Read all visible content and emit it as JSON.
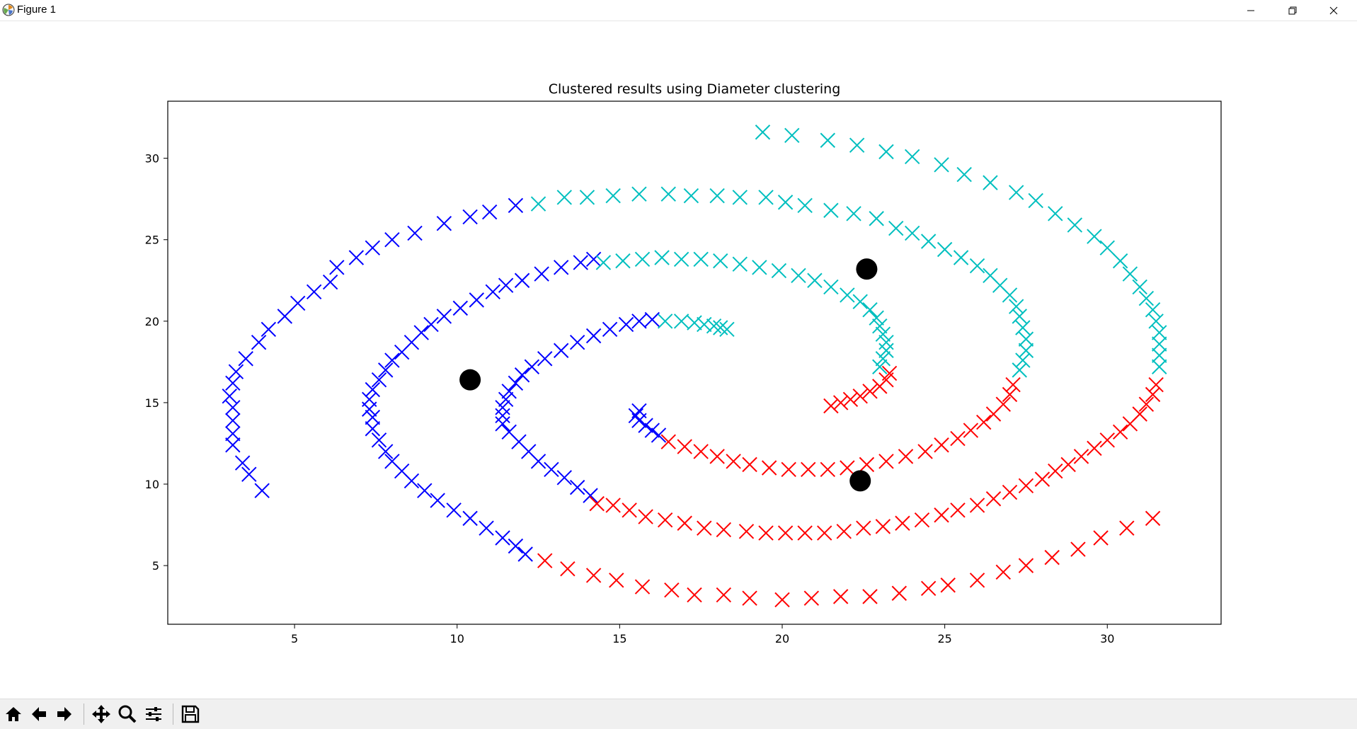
{
  "window": {
    "title": "Figure 1",
    "controls": [
      "minimize-icon",
      "maximize-icon",
      "close-icon"
    ]
  },
  "toolbar": {
    "buttons": [
      "home-icon",
      "back-icon",
      "forward-icon",
      "pan-icon",
      "zoom-icon",
      "configure-subplots-icon",
      "save-icon"
    ]
  },
  "chart_data": {
    "type": "scatter",
    "title": "Clustered results using Diameter clustering",
    "xlabel": "",
    "ylabel": "",
    "xlim": [
      1.1,
      33.5
    ],
    "ylim": [
      1.4,
      33.5
    ],
    "xticks": [
      5,
      10,
      15,
      20,
      25,
      30
    ],
    "yticks": [
      5,
      10,
      15,
      20,
      25,
      30
    ],
    "grid": false,
    "legend": "none",
    "marker": "x",
    "series": [
      {
        "color": "#0000ff",
        "points": [
          [
            4.0,
            9.6
          ],
          [
            3.6,
            10.6
          ],
          [
            3.4,
            11.3
          ],
          [
            3.1,
            12.4
          ],
          [
            3.1,
            13.1
          ],
          [
            3.1,
            13.9
          ],
          [
            3.1,
            14.7
          ],
          [
            3.0,
            15.4
          ],
          [
            3.1,
            16.2
          ],
          [
            3.2,
            16.9
          ],
          [
            3.5,
            17.7
          ],
          [
            3.9,
            18.7
          ],
          [
            4.2,
            19.5
          ],
          [
            4.7,
            20.3
          ],
          [
            5.1,
            21.1
          ],
          [
            5.6,
            21.8
          ],
          [
            6.1,
            22.4
          ],
          [
            6.3,
            23.3
          ],
          [
            6.9,
            23.9
          ],
          [
            7.4,
            24.5
          ],
          [
            8.0,
            25.0
          ],
          [
            8.7,
            25.4
          ],
          [
            9.6,
            26.0
          ],
          [
            10.4,
            26.4
          ],
          [
            11.0,
            26.7
          ],
          [
            11.8,
            27.1
          ],
          [
            7.4,
            14.1
          ],
          [
            7.3,
            14.6
          ],
          [
            7.3,
            15.2
          ],
          [
            7.4,
            15.8
          ],
          [
            7.6,
            16.4
          ],
          [
            7.8,
            17.0
          ],
          [
            8.0,
            17.6
          ],
          [
            8.3,
            18.1
          ],
          [
            8.6,
            18.7
          ],
          [
            8.9,
            19.3
          ],
          [
            9.2,
            19.8
          ],
          [
            9.6,
            20.3
          ],
          [
            10.1,
            20.8
          ],
          [
            10.6,
            21.3
          ],
          [
            11.1,
            21.8
          ],
          [
            11.5,
            22.2
          ],
          [
            12.0,
            22.5
          ],
          [
            12.6,
            22.9
          ],
          [
            13.2,
            23.3
          ],
          [
            13.8,
            23.6
          ],
          [
            14.2,
            23.8
          ],
          [
            7.4,
            13.4
          ],
          [
            7.6,
            12.7
          ],
          [
            7.8,
            12.0
          ],
          [
            8.0,
            11.4
          ],
          [
            8.3,
            10.8
          ],
          [
            8.6,
            10.2
          ],
          [
            9.0,
            9.6
          ],
          [
            9.4,
            9.0
          ],
          [
            9.9,
            8.4
          ],
          [
            10.4,
            7.9
          ],
          [
            10.9,
            7.3
          ],
          [
            11.4,
            6.7
          ],
          [
            11.8,
            6.2
          ],
          [
            12.1,
            5.7
          ],
          [
            11.6,
            13.2
          ],
          [
            11.4,
            13.7
          ],
          [
            11.4,
            14.2
          ],
          [
            11.4,
            14.7
          ],
          [
            11.5,
            15.2
          ],
          [
            11.6,
            15.7
          ],
          [
            11.8,
            16.2
          ],
          [
            12.0,
            16.7
          ],
          [
            12.3,
            17.2
          ],
          [
            12.7,
            17.7
          ],
          [
            13.2,
            18.2
          ],
          [
            13.7,
            18.7
          ],
          [
            14.2,
            19.1
          ],
          [
            14.7,
            19.5
          ],
          [
            15.2,
            19.8
          ],
          [
            15.6,
            20.0
          ],
          [
            16.0,
            20.1
          ],
          [
            11.9,
            12.6
          ],
          [
            12.2,
            12.0
          ],
          [
            12.5,
            11.4
          ],
          [
            12.9,
            10.9
          ],
          [
            13.3,
            10.4
          ],
          [
            13.7,
            9.8
          ],
          [
            14.1,
            9.3
          ],
          [
            15.6,
            14.5
          ],
          [
            15.5,
            14.2
          ],
          [
            15.6,
            13.9
          ],
          [
            15.8,
            13.6
          ],
          [
            16.0,
            13.3
          ],
          [
            16.2,
            13.0
          ]
        ]
      },
      {
        "color": "#00bfbf",
        "points": [
          [
            19.4,
            31.6
          ],
          [
            20.3,
            31.4
          ],
          [
            21.4,
            31.1
          ],
          [
            22.3,
            30.8
          ],
          [
            23.2,
            30.4
          ],
          [
            24.0,
            30.1
          ],
          [
            24.9,
            29.6
          ],
          [
            25.6,
            29.0
          ],
          [
            26.4,
            28.5
          ],
          [
            27.2,
            27.9
          ],
          [
            27.8,
            27.4
          ],
          [
            28.4,
            26.6
          ],
          [
            29.0,
            25.9
          ],
          [
            29.6,
            25.2
          ],
          [
            30.0,
            24.5
          ],
          [
            30.4,
            23.7
          ],
          [
            30.7,
            22.9
          ],
          [
            31.0,
            22.1
          ],
          [
            31.2,
            21.4
          ],
          [
            31.4,
            20.7
          ],
          [
            31.5,
            20.0
          ],
          [
            31.6,
            19.3
          ],
          [
            31.6,
            18.6
          ],
          [
            31.6,
            17.9
          ],
          [
            31.6,
            17.2
          ],
          [
            12.5,
            27.2
          ],
          [
            13.3,
            27.6
          ],
          [
            14.0,
            27.6
          ],
          [
            14.8,
            27.7
          ],
          [
            15.6,
            27.8
          ],
          [
            16.5,
            27.8
          ],
          [
            17.2,
            27.7
          ],
          [
            18.0,
            27.7
          ],
          [
            18.7,
            27.6
          ],
          [
            19.5,
            27.6
          ],
          [
            20.1,
            27.3
          ],
          [
            20.7,
            27.1
          ],
          [
            21.5,
            26.8
          ],
          [
            22.2,
            26.6
          ],
          [
            22.9,
            26.3
          ],
          [
            23.5,
            25.7
          ],
          [
            24.0,
            25.4
          ],
          [
            24.5,
            24.9
          ],
          [
            25.0,
            24.4
          ],
          [
            25.5,
            23.9
          ],
          [
            26.0,
            23.4
          ],
          [
            26.4,
            22.8
          ],
          [
            26.7,
            22.2
          ],
          [
            27.0,
            21.6
          ],
          [
            27.2,
            20.9
          ],
          [
            27.3,
            20.3
          ],
          [
            27.4,
            19.6
          ],
          [
            27.5,
            18.9
          ],
          [
            27.5,
            18.2
          ],
          [
            27.4,
            17.6
          ],
          [
            27.3,
            17.0
          ],
          [
            14.5,
            23.6
          ],
          [
            15.1,
            23.7
          ],
          [
            15.7,
            23.8
          ],
          [
            16.3,
            23.9
          ],
          [
            16.9,
            23.8
          ],
          [
            17.5,
            23.8
          ],
          [
            18.1,
            23.7
          ],
          [
            18.7,
            23.5
          ],
          [
            19.3,
            23.3
          ],
          [
            19.9,
            23.1
          ],
          [
            20.5,
            22.8
          ],
          [
            21.0,
            22.5
          ],
          [
            21.5,
            22.1
          ],
          [
            22.0,
            21.6
          ],
          [
            22.4,
            21.2
          ],
          [
            22.7,
            20.7
          ],
          [
            22.9,
            20.2
          ],
          [
            23.0,
            19.7
          ],
          [
            23.1,
            19.2
          ],
          [
            23.2,
            18.7
          ],
          [
            23.2,
            18.2
          ],
          [
            23.1,
            17.7
          ],
          [
            23.0,
            17.2
          ],
          [
            16.4,
            20.0
          ],
          [
            16.9,
            20.0
          ],
          [
            17.3,
            19.9
          ],
          [
            17.6,
            19.8
          ],
          [
            17.9,
            19.7
          ],
          [
            18.1,
            19.6
          ],
          [
            18.3,
            19.5
          ]
        ]
      },
      {
        "color": "#ff0000",
        "points": [
          [
            12.7,
            5.3
          ],
          [
            13.4,
            4.8
          ],
          [
            14.2,
            4.4
          ],
          [
            14.9,
            4.1
          ],
          [
            15.7,
            3.7
          ],
          [
            16.6,
            3.5
          ],
          [
            17.3,
            3.2
          ],
          [
            18.2,
            3.2
          ],
          [
            19.0,
            3.0
          ],
          [
            20.0,
            2.9
          ],
          [
            20.9,
            3.0
          ],
          [
            21.8,
            3.1
          ],
          [
            22.7,
            3.1
          ],
          [
            23.6,
            3.3
          ],
          [
            24.5,
            3.6
          ],
          [
            25.1,
            3.8
          ],
          [
            26.0,
            4.1
          ],
          [
            26.8,
            4.6
          ],
          [
            27.5,
            5.0
          ],
          [
            28.3,
            5.5
          ],
          [
            29.1,
            6.0
          ],
          [
            29.8,
            6.7
          ],
          [
            30.6,
            7.3
          ],
          [
            31.4,
            7.9
          ],
          [
            14.3,
            8.8
          ],
          [
            14.8,
            8.7
          ],
          [
            15.3,
            8.4
          ],
          [
            15.8,
            8.0
          ],
          [
            16.4,
            7.8
          ],
          [
            17.0,
            7.6
          ],
          [
            17.6,
            7.3
          ],
          [
            18.2,
            7.2
          ],
          [
            18.9,
            7.1
          ],
          [
            19.5,
            7.0
          ],
          [
            20.1,
            7.0
          ],
          [
            20.7,
            7.0
          ],
          [
            21.3,
            7.0
          ],
          [
            21.9,
            7.1
          ],
          [
            22.5,
            7.3
          ],
          [
            23.1,
            7.4
          ],
          [
            23.7,
            7.6
          ],
          [
            24.3,
            7.8
          ],
          [
            24.9,
            8.1
          ],
          [
            25.4,
            8.4
          ],
          [
            26.0,
            8.7
          ],
          [
            26.5,
            9.1
          ],
          [
            27.0,
            9.5
          ],
          [
            27.5,
            9.9
          ],
          [
            28.0,
            10.3
          ],
          [
            28.4,
            10.8
          ],
          [
            28.8,
            11.2
          ],
          [
            29.2,
            11.7
          ],
          [
            29.6,
            12.2
          ],
          [
            30.0,
            12.7
          ],
          [
            30.4,
            13.2
          ],
          [
            30.7,
            13.7
          ],
          [
            31.0,
            14.3
          ],
          [
            31.2,
            14.9
          ],
          [
            31.4,
            15.5
          ],
          [
            31.5,
            16.1
          ],
          [
            16.5,
            12.6
          ],
          [
            17.0,
            12.3
          ],
          [
            17.5,
            12.0
          ],
          [
            18.0,
            11.7
          ],
          [
            18.5,
            11.4
          ],
          [
            19.0,
            11.2
          ],
          [
            19.6,
            11.0
          ],
          [
            20.2,
            10.9
          ],
          [
            20.8,
            10.9
          ],
          [
            21.4,
            10.9
          ],
          [
            22.0,
            11.0
          ],
          [
            22.6,
            11.2
          ],
          [
            23.2,
            11.4
          ],
          [
            23.8,
            11.7
          ],
          [
            24.4,
            12.0
          ],
          [
            24.9,
            12.4
          ],
          [
            25.4,
            12.8
          ],
          [
            25.8,
            13.3
          ],
          [
            26.2,
            13.8
          ],
          [
            26.5,
            14.3
          ],
          [
            26.8,
            14.9
          ],
          [
            27.0,
            15.5
          ],
          [
            27.1,
            16.1
          ],
          [
            21.5,
            14.8
          ],
          [
            21.8,
            15.0
          ],
          [
            22.1,
            15.2
          ],
          [
            22.4,
            15.4
          ],
          [
            22.7,
            15.7
          ],
          [
            23.0,
            16.0
          ],
          [
            23.2,
            16.4
          ],
          [
            23.3,
            16.8
          ]
        ]
      }
    ],
    "centroids": {
      "color": "#000000",
      "points": [
        [
          10.4,
          16.4
        ],
        [
          22.6,
          23.2
        ],
        [
          22.4,
          10.2
        ]
      ]
    }
  }
}
